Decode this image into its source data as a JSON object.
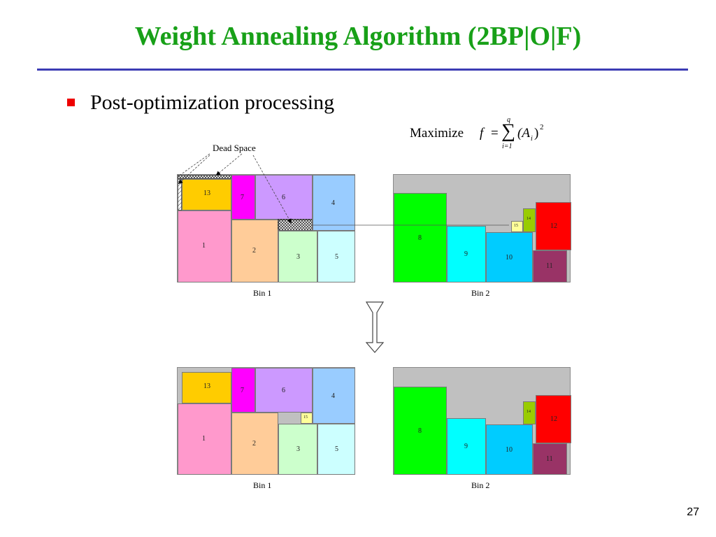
{
  "slide": {
    "title": "Weight Annealing Algorithm (2BP|O|F)",
    "bullet": "Post-optimization processing",
    "page_number": "27"
  },
  "formula": {
    "label": "Maximize",
    "f": "f",
    "equals": "=",
    "sum": "∑",
    "upper": "q",
    "lower": "i=1",
    "term": "(A",
    "sub": "i",
    "close": ")",
    "power": "2"
  },
  "dead_space_label": "Dead Space",
  "bins": {
    "top_bin1": {
      "label": "Bin 1",
      "items": [
        "13",
        "7",
        "6",
        "4",
        "1",
        "2",
        "3",
        "5"
      ]
    },
    "top_bin2": {
      "label": "Bin 2",
      "items": [
        "8",
        "9",
        "10",
        "11",
        "12",
        "14",
        "15"
      ]
    },
    "bottom_bin1": {
      "label": "Bin 1",
      "items": [
        "13",
        "7",
        "6",
        "4",
        "1",
        "2",
        "3",
        "5",
        "15"
      ]
    },
    "bottom_bin2": {
      "label": "Bin 2",
      "items": [
        "8",
        "9",
        "10",
        "11",
        "12",
        "14"
      ]
    }
  },
  "colors": {
    "title": "#18a018",
    "rule": "#3c3cb4",
    "bullet": "#ee0000",
    "bin_background": "#c0c0c0",
    "item_pink": "#ff99cc",
    "item_orange": "#ffcc99",
    "item_lightgreen": "#ccffcc",
    "item_lightcyan": "#ccffff",
    "item_gold": "#ffcc00",
    "item_magenta": "#ff00ff",
    "item_lavender": "#cc99ff",
    "item_blue": "#99ccff",
    "item_green": "#00ff00",
    "item_cyan": "#00ffff",
    "item_sky": "#00ccff",
    "item_maroon": "#993366",
    "item_red": "#ff0000",
    "item_olive": "#99cc00",
    "item_paleyellow": "#ffff99"
  }
}
